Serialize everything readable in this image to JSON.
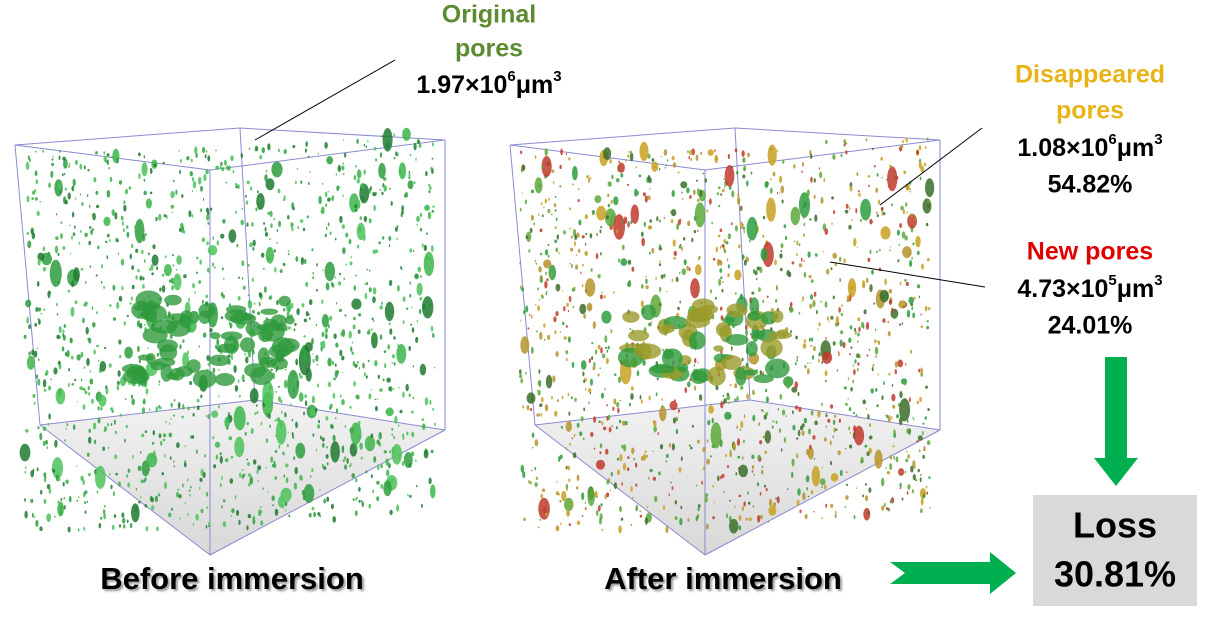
{
  "panels": [
    {
      "caption": "Before immersion"
    },
    {
      "caption": "After immersion"
    }
  ],
  "annotations": {
    "original": {
      "name": [
        "Original",
        "pores"
      ],
      "volume": {
        "mantissa": "1.97×10",
        "exponent": "6",
        "unit": "μm",
        "unit_exponent": "3"
      }
    },
    "disappeared": {
      "name": [
        "Disappeared",
        "pores"
      ],
      "volume": {
        "mantissa": "1.08×10",
        "exponent": "6",
        "unit": "μm",
        "unit_exponent": "3"
      },
      "percent": "54.82%"
    },
    "new": {
      "name": [
        "New pores"
      ],
      "volume": {
        "mantissa": "4.73×10",
        "exponent": "5",
        "unit": "μm",
        "unit_exponent": "3"
      },
      "percent": "24.01%"
    }
  },
  "result": {
    "label": "Loss",
    "value": "30.81%"
  }
}
